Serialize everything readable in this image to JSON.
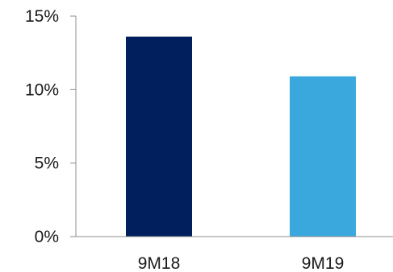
{
  "chart_data": {
    "type": "bar",
    "categories": [
      "9M18",
      "9M19"
    ],
    "values": [
      13.6,
      10.9
    ],
    "colors": [
      "#001f5c",
      "#3aa8dc"
    ],
    "ylim": [
      0,
      15
    ],
    "yticks": [
      0,
      5,
      10,
      15
    ],
    "ytick_labels": [
      "0%",
      "5%",
      "10%",
      "15%"
    ],
    "grid": false,
    "legend": "none"
  }
}
